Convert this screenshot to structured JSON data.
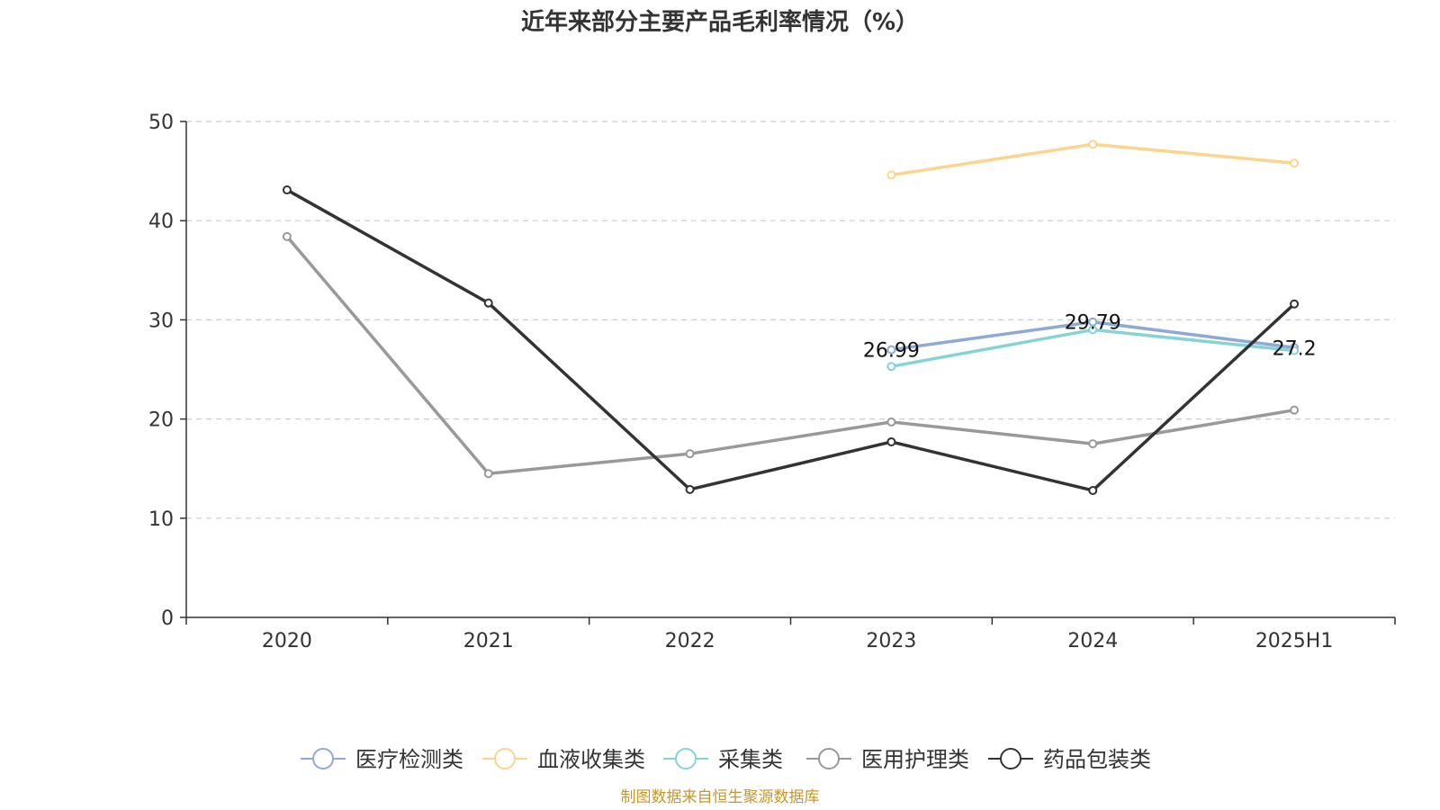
{
  "chart_data": {
    "type": "line",
    "title": "近年来部分主要产品毛利率情况（%）",
    "categories": [
      "2020",
      "2021",
      "2022",
      "2023",
      "2024",
      "2025H1"
    ],
    "ylim": [
      0,
      50
    ],
    "yticks": [
      "0",
      "10",
      "20",
      "30",
      "40",
      "50"
    ],
    "grid": true,
    "legend_position": "bottom",
    "series": [
      {
        "name": "医疗检测类",
        "color": "#8fa9d6",
        "values": [
          null,
          null,
          null,
          26.99,
          29.79,
          27.2
        ]
      },
      {
        "name": "血液收集类",
        "color": "#fbd58f",
        "values": [
          null,
          null,
          null,
          44.6,
          47.7,
          45.8
        ]
      },
      {
        "name": "采集类",
        "color": "#84d3d6",
        "values": [
          null,
          null,
          null,
          25.3,
          29.0,
          26.9
        ]
      },
      {
        "name": "医用护理类",
        "color": "#999999",
        "values": [
          38.4,
          14.5,
          16.5,
          19.7,
          17.5,
          20.9
        ]
      },
      {
        "name": "药品包装类",
        "color": "#333333",
        "values": [
          43.1,
          31.7,
          12.9,
          17.7,
          12.8,
          31.6
        ]
      }
    ],
    "data_labels": [
      {
        "series": 0,
        "index": 3,
        "text": "26.99"
      },
      {
        "series": 0,
        "index": 4,
        "text": "29.79"
      },
      {
        "series": 0,
        "index": 5,
        "text": "27.2"
      }
    ]
  },
  "source_text": "制图数据来自恒生聚源数据库",
  "source_color": "#c8962a"
}
